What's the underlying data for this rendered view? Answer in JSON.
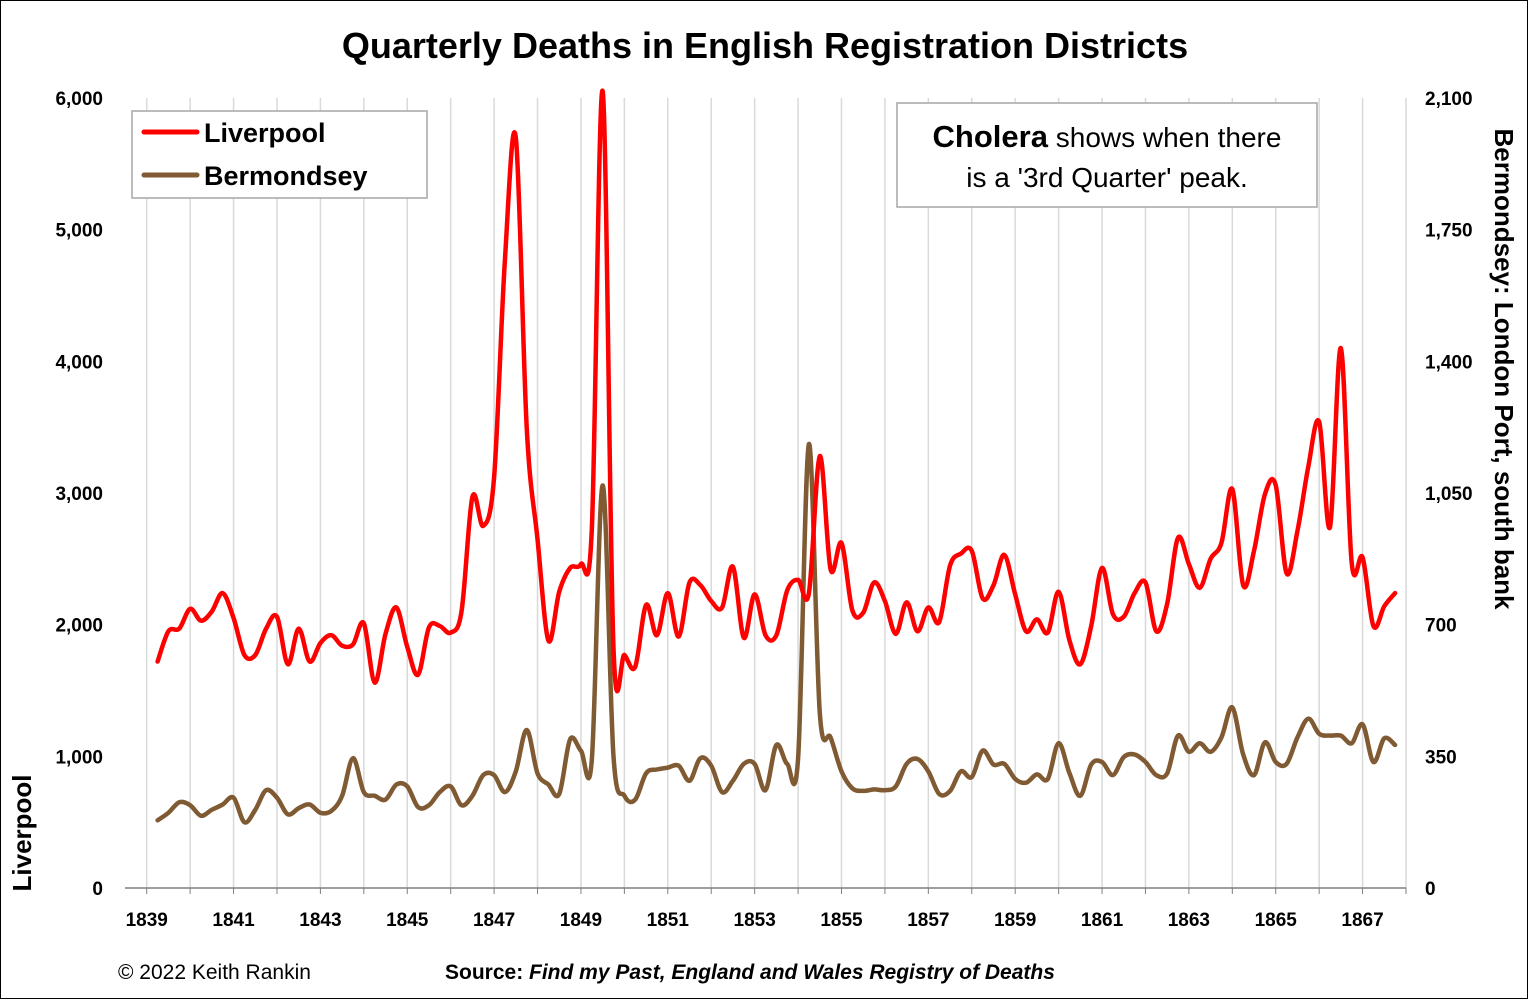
{
  "chart_data": {
    "type": "line",
    "title": "Quarterly Deaths in English Registration Districts",
    "ylabel_left": "Liverpool",
    "ylabel_right": "Bermondsey: London Port, south bank",
    "xlabel": "",
    "x_start_year": 1839.25,
    "x_step_years": 0.25,
    "xlim": [
      1838.5,
      1868.0
    ],
    "x_ticks": [
      "1839",
      "1841",
      "1843",
      "1845",
      "1847",
      "1849",
      "1851",
      "1853",
      "1855",
      "1857",
      "1859",
      "1861",
      "1863",
      "1865",
      "1867"
    ],
    "ylim_left": [
      0,
      6000
    ],
    "yticks_left": [
      "0",
      "1,000",
      "2,000",
      "3,000",
      "4,000",
      "5,000",
      "6,000"
    ],
    "ylim_right": [
      0,
      2100
    ],
    "yticks_right": [
      "0",
      "350",
      "700",
      "1,050",
      "1,400",
      "1,750",
      "2,100"
    ],
    "grid": "vertical",
    "legend": {
      "position": "top-left",
      "entries": [
        "Liverpool",
        "Bermondsey"
      ]
    },
    "annotation": {
      "bold": "Cholera",
      "rest_line1": " shows when there",
      "line2": "is a '3rd Quarter' peak."
    },
    "series": [
      {
        "name": "Liverpool",
        "axis": "left",
        "color": "#ff0000",
        "values": [
          1720,
          1950,
          1970,
          2120,
          2030,
          2100,
          2240,
          2050,
          1770,
          1770,
          1970,
          2060,
          1700,
          1970,
          1720,
          1860,
          1920,
          1840,
          1850,
          2010,
          1560,
          1930,
          2130,
          1830,
          1620,
          1980,
          1990,
          1940,
          2100,
          2970,
          2750,
          3120,
          4780,
          5700,
          3500,
          2650,
          1880,
          2250,
          2430,
          2460,
          2720,
          6050,
          1820,
          1770,
          1680,
          2150,
          1920,
          2240,
          1910,
          2320,
          2300,
          2180,
          2130,
          2440,
          1900,
          2230,
          1920,
          1920,
          2260,
          2340,
          2240,
          3280,
          2420,
          2620,
          2110,
          2090,
          2320,
          2180,
          1930,
          2170,
          1950,
          2130,
          2020,
          2450,
          2540,
          2560,
          2200,
          2300,
          2530,
          2230,
          1950,
          2040,
          1940,
          2250,
          1880,
          1700,
          1990,
          2430,
          2080,
          2060,
          2240,
          2320,
          1950,
          2160,
          2660,
          2460,
          2280,
          2500,
          2620,
          3030,
          2300,
          2560,
          2990,
          3060,
          2390,
          2710,
          3200,
          3540,
          2740,
          4100,
          2470,
          2510,
          1990,
          2140,
          2240
        ]
      },
      {
        "name": "Bermondsey",
        "axis": "right",
        "color": "#7f5a32",
        "values": [
          180,
          200,
          228,
          220,
          192,
          208,
          222,
          240,
          175,
          208,
          260,
          240,
          196,
          212,
          222,
          200,
          205,
          245,
          345,
          255,
          245,
          235,
          275,
          270,
          215,
          220,
          255,
          270,
          220,
          245,
          300,
          300,
          255,
          310,
          420,
          305,
          275,
          250,
          395,
          365,
          340,
          1070,
          350,
          245,
          235,
          305,
          315,
          320,
          325,
          285,
          345,
          325,
          255,
          285,
          330,
          330,
          260,
          380,
          330,
          345,
          1180,
          465,
          400,
          310,
          265,
          258,
          262,
          260,
          270,
          330,
          343,
          310,
          250,
          258,
          310,
          295,
          365,
          328,
          330,
          290,
          280,
          302,
          290,
          385,
          305,
          245,
          328,
          335,
          300,
          348,
          355,
          335,
          300,
          305,
          405,
          362,
          385,
          362,
          400,
          480,
          355,
          300,
          387,
          335,
          330,
          400,
          450,
          410,
          405,
          405,
          385,
          435,
          335,
          398,
          380
        ]
      }
    ]
  },
  "footer": {
    "copyright": "© 2022 Keith Rankin",
    "source_label": "Source:",
    "source_text": " Find my Past, England and Wales Registry of Deaths"
  }
}
